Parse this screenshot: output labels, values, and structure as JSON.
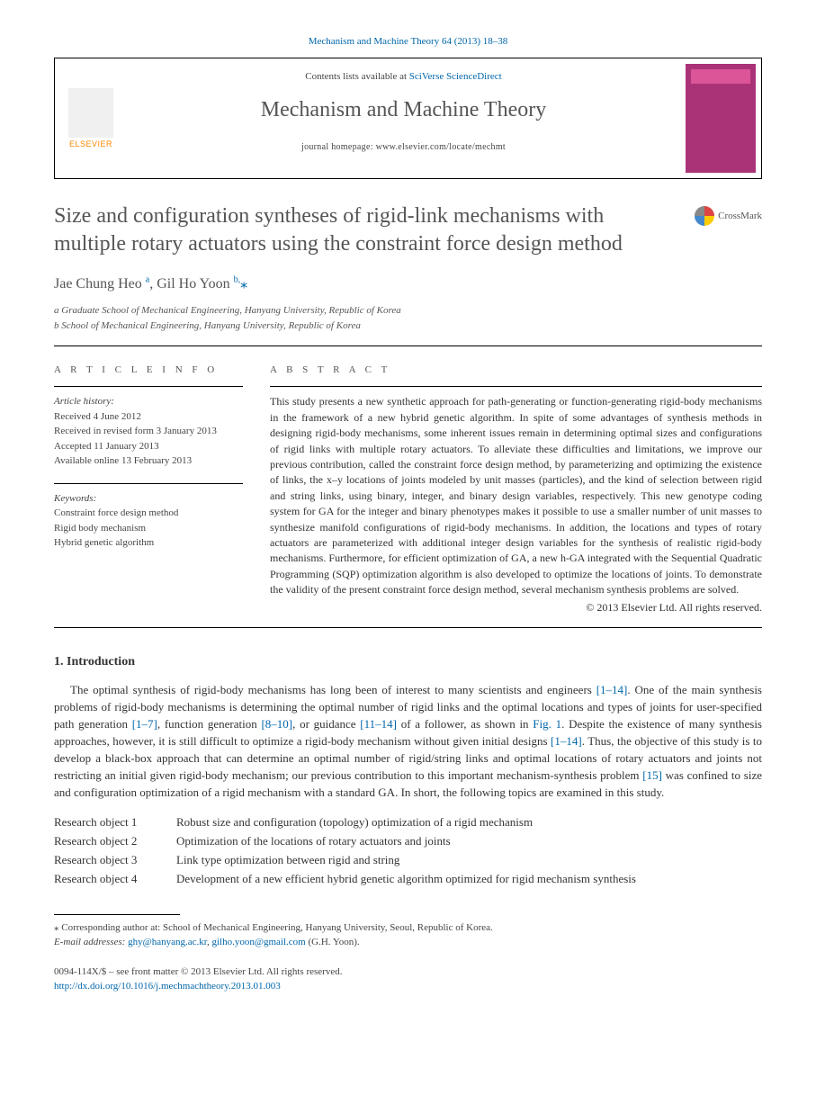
{
  "journal_ref": "Mechanism and Machine Theory 64 (2013) 18–38",
  "header": {
    "elsevier": "ELSEVIER",
    "contents_prefix": "Contents lists available at ",
    "contents_link": "SciVerse ScienceDirect",
    "journal_name": "Mechanism and Machine Theory",
    "homepage_label": "journal homepage: ",
    "homepage_url": "www.elsevier.com/locate/mechmt"
  },
  "title": "Size and configuration syntheses of rigid-link mechanisms with multiple rotary actuators using the constraint force design method",
  "crossmark_label": "CrossMark",
  "authors_html": "Jae Chung Heo <sup>a</sup>, Gil Ho Yoon <sup>b,</sup>",
  "corr_mark": "⁎",
  "affiliations": {
    "a": "a Graduate School of Mechanical Engineering, Hanyang University, Republic of Korea",
    "b": "b School of Mechanical Engineering, Hanyang University, Republic of Korea"
  },
  "info_heading": "A R T I C L E   I N F O",
  "abstract_heading": "A B S T R A C T",
  "history": {
    "label": "Article history:",
    "received": "Received 4 June 2012",
    "revised": "Received in revised form 3 January 2013",
    "accepted": "Accepted 11 January 2013",
    "online": "Available online 13 February 2013"
  },
  "keywords": {
    "label": "Keywords:",
    "k1": "Constraint force design method",
    "k2": "Rigid body mechanism",
    "k3": "Hybrid genetic algorithm"
  },
  "abstract": "This study presents a new synthetic approach for path-generating or function-generating rigid-body mechanisms in the framework of a new hybrid genetic algorithm. In spite of some advantages of synthesis methods in designing rigid-body mechanisms, some inherent issues remain in determining optimal sizes and configurations of rigid links with multiple rotary actuators. To alleviate these difficulties and limitations, we improve our previous contribution, called the constraint force design method, by parameterizing and optimizing the existence of links, the x–y locations of joints modeled by unit masses (particles), and the kind of selection between rigid and string links, using binary, integer, and binary design variables, respectively. This new genotype coding system for GA for the integer and binary phenotypes makes it possible to use a smaller number of unit masses to synthesize manifold configurations of rigid-body mechanisms. In addition, the locations and types of rotary actuators are parameterized with additional integer design variables for the synthesis of realistic rigid-body mechanisms. Furthermore, for efficient optimization of GA, a new h-GA integrated with the Sequential Quadratic Programming (SQP) optimization algorithm is also developed to optimize the locations of joints. To demonstrate the validity of the present constraint force design method, several mechanism synthesis problems are solved.",
  "copyright": "© 2013 Elsevier Ltd. All rights reserved.",
  "intro_heading": "1. Introduction",
  "intro_para": "The optimal synthesis of rigid-body mechanisms has long been of interest to many scientists and engineers [1–14]. One of the main synthesis problems of rigid-body mechanisms is determining the optimal number of rigid links and the optimal locations and types of joints for user-specified path generation [1–7], function generation [8–10], or guidance [11–14] of a follower, as shown in Fig. 1. Despite the existence of many synthesis approaches, however, it is still difficult to optimize a rigid-body mechanism without given initial designs [1–14]. Thus, the objective of this study is to develop a black-box approach that can determine an optimal number of rigid/string links and optimal locations of rotary actuators and joints not restricting an initial given rigid-body mechanism; our previous contribution to this important mechanism-synthesis problem [15] was confined to size and configuration optimization of a rigid mechanism with a standard GA. In short, the following topics are examined in this study.",
  "research": {
    "r1_lbl": "Research object 1",
    "r1": "Robust size and configuration (topology) optimization of a rigid mechanism",
    "r2_lbl": "Research object 2",
    "r2": "Optimization of the locations of rotary actuators and joints",
    "r3_lbl": "Research object 3",
    "r3": "Link type optimization between rigid and string",
    "r4_lbl": "Research object 4",
    "r4": "Development of a new efficient hybrid genetic algorithm optimized for rigid mechanism synthesis"
  },
  "footnote": {
    "corr": "⁎ Corresponding author at: School of Mechanical Engineering, Hanyang University, Seoul, Republic of Korea.",
    "email_lbl": "E-mail addresses: ",
    "email1": "ghy@hanyang.ac.kr",
    "email_sep": ", ",
    "email2": "gilho.yoon@gmail.com",
    "email_tail": " (G.H. Yoon)."
  },
  "footer": {
    "line1": "0094-114X/$ – see front matter © 2013 Elsevier Ltd. All rights reserved.",
    "doi": "http://dx.doi.org/10.1016/j.mechmachtheory.2013.01.003"
  },
  "colors": {
    "link": "#0066aa",
    "text": "#333333",
    "muted": "#555555",
    "elsevier_orange": "#ff8800",
    "cover_bg": "#aa3377"
  }
}
